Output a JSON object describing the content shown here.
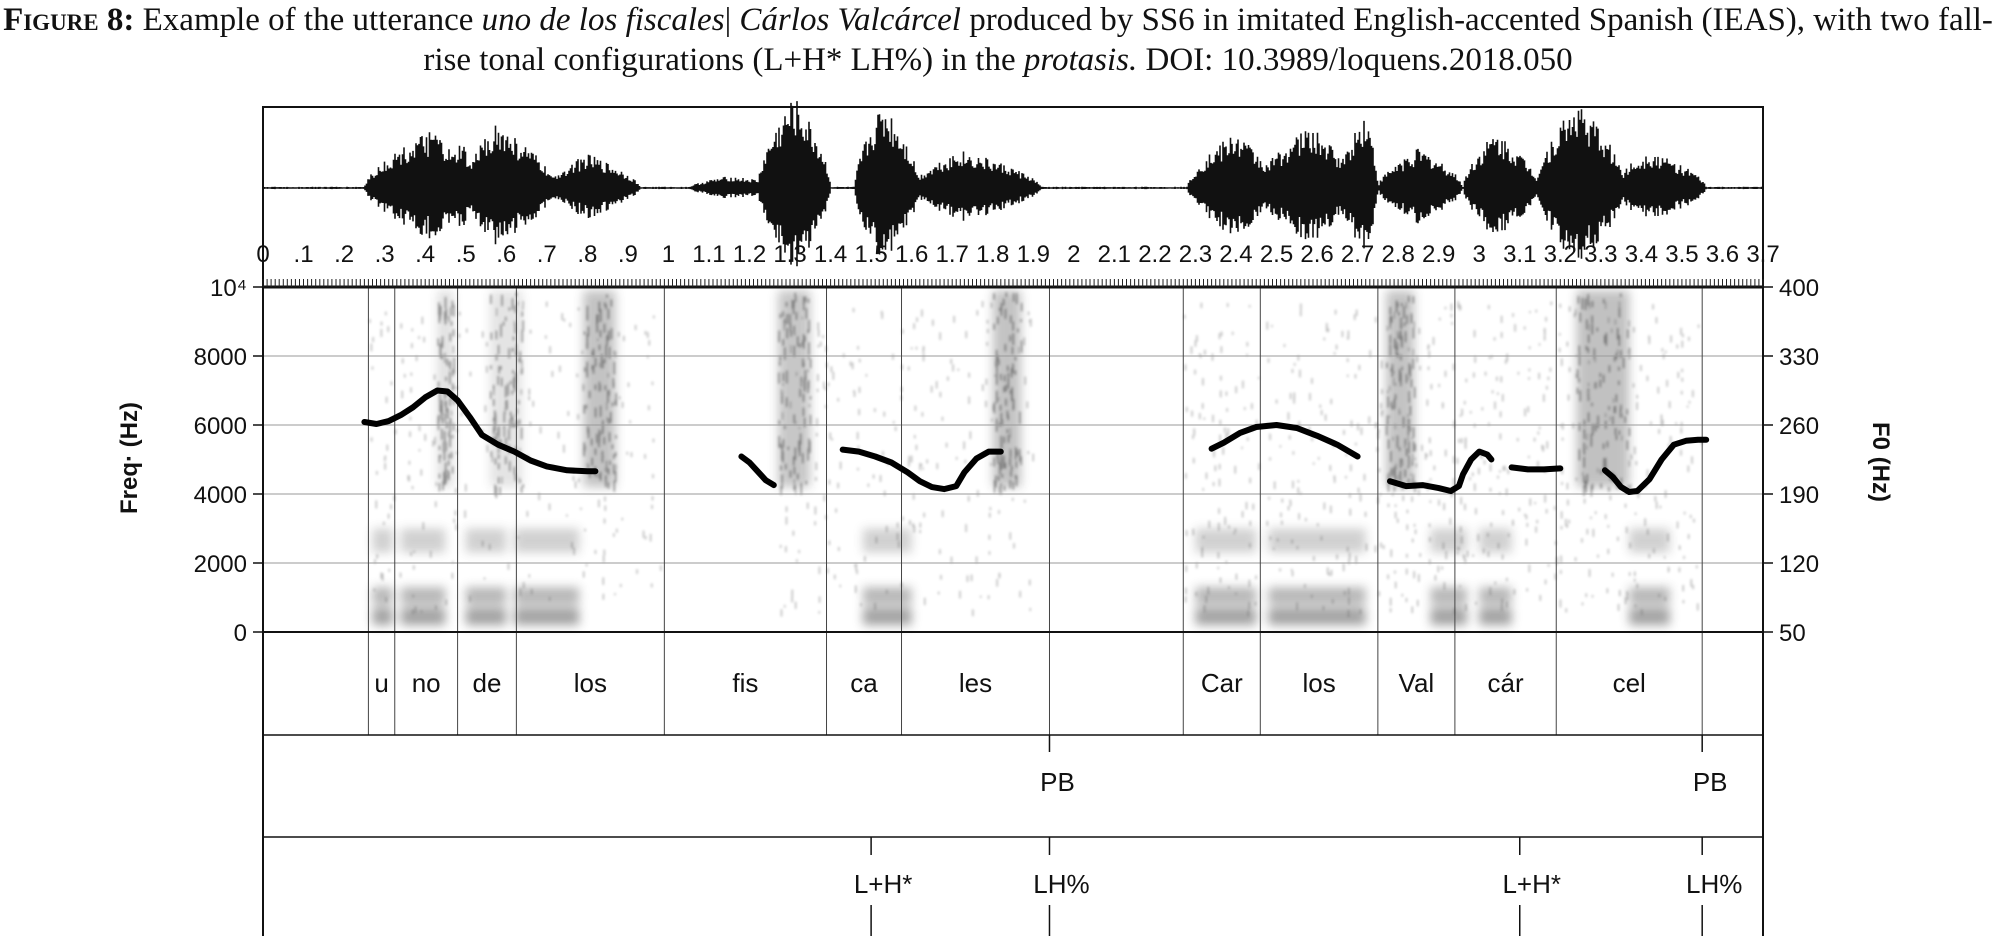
{
  "caption": {
    "label": "Figure 8:",
    "t1": " Example of the utterance ",
    "i1": "uno de los fiscales",
    "t2": "| ",
    "i2": "Cárlos Valcárcel",
    "t3": " produced by SS6 in imitated English-accented Spanish (IEAS), with two fall-rise tonal configurations (L+H* LH%) in the ",
    "i3": "protasis.",
    "t4": " DOI: 10.3989/loquens.2018.050"
  },
  "chart_data": {
    "type": "line",
    "xlim": [
      0,
      3.7
    ],
    "time_ticks": [
      "0",
      "0.1",
      "0.2",
      "0.3",
      "0.4",
      "0.5",
      "0.6",
      "0.7",
      "0.8",
      "0.9",
      "1",
      "1.1",
      "1.2",
      "1.3",
      "1.4",
      "1.5",
      "1.6",
      "1.7",
      "1.8",
      "1.9",
      "2",
      "2.1",
      "2.2",
      "2.3",
      "2.4",
      "2.5",
      "2.6",
      "2.7",
      "2.8",
      "2.9",
      "3",
      "3.1",
      "3.2",
      "3.3",
      "3.4",
      "3.5",
      "3.6",
      "3.7"
    ],
    "left_axis": {
      "label": "Freq· (Hz)",
      "ylim": [
        0,
        10000
      ],
      "ticks": [
        "0",
        "2000",
        "4000",
        "6000",
        "8000",
        "10⁴"
      ]
    },
    "right_axis": {
      "label": "F0 (Hz)",
      "ylim": [
        50,
        400
      ],
      "ticks": [
        "50",
        "120",
        "190",
        "260",
        "330",
        "400"
      ]
    },
    "f0_contour": [
      [
        [
          0.25,
          263
        ],
        [
          0.28,
          261
        ],
        [
          0.31,
          264
        ],
        [
          0.34,
          270
        ],
        [
          0.37,
          278
        ],
        [
          0.4,
          288
        ],
        [
          0.43,
          295
        ],
        [
          0.455,
          294
        ],
        [
          0.48,
          285
        ],
        [
          0.51,
          268
        ],
        [
          0.54,
          250
        ],
        [
          0.58,
          240
        ],
        [
          0.62,
          233
        ],
        [
          0.66,
          224
        ],
        [
          0.7,
          218
        ],
        [
          0.75,
          214
        ],
        [
          0.8,
          213
        ],
        [
          0.82,
          213
        ]
      ],
      [
        [
          1.18,
          228
        ],
        [
          1.2,
          222
        ],
        [
          1.22,
          213
        ],
        [
          1.24,
          204
        ],
        [
          1.26,
          199
        ]
      ],
      [
        [
          1.43,
          235
        ],
        [
          1.47,
          233
        ],
        [
          1.51,
          228
        ],
        [
          1.55,
          222
        ],
        [
          1.59,
          212
        ],
        [
          1.62,
          203
        ],
        [
          1.65,
          197
        ],
        [
          1.68,
          195
        ],
        [
          1.71,
          198
        ],
        [
          1.73,
          212
        ],
        [
          1.76,
          226
        ],
        [
          1.79,
          233
        ],
        [
          1.82,
          233
        ]
      ],
      [
        [
          2.34,
          236
        ],
        [
          2.37,
          242
        ],
        [
          2.41,
          252
        ],
        [
          2.45,
          258
        ],
        [
          2.5,
          260
        ],
        [
          2.55,
          257
        ],
        [
          2.6,
          249
        ],
        [
          2.65,
          240
        ],
        [
          2.7,
          228
        ]
      ],
      [
        [
          2.78,
          203
        ],
        [
          2.82,
          198
        ],
        [
          2.86,
          199
        ],
        [
          2.9,
          196
        ],
        [
          2.93,
          193
        ],
        [
          2.95,
          198
        ],
        [
          2.96,
          210
        ],
        [
          2.98,
          225
        ],
        [
          3.0,
          233
        ],
        [
          3.02,
          230
        ],
        [
          3.03,
          225
        ]
      ],
      [
        [
          3.08,
          217
        ],
        [
          3.12,
          215
        ],
        [
          3.16,
          215
        ],
        [
          3.2,
          216
        ]
      ],
      [
        [
          3.31,
          214
        ],
        [
          3.33,
          207
        ],
        [
          3.35,
          197
        ],
        [
          3.37,
          192
        ],
        [
          3.39,
          193
        ],
        [
          3.42,
          205
        ],
        [
          3.45,
          225
        ],
        [
          3.48,
          240
        ],
        [
          3.51,
          244
        ],
        [
          3.54,
          245
        ],
        [
          3.56,
          245
        ]
      ]
    ],
    "syllables": [
      {
        "text": "u",
        "start": 0.26,
        "end": 0.325
      },
      {
        "text": "no",
        "start": 0.325,
        "end": 0.48
      },
      {
        "text": "de",
        "start": 0.48,
        "end": 0.625
      },
      {
        "text": "los",
        "start": 0.625,
        "end": 0.99
      },
      {
        "text": "fis",
        "start": 0.99,
        "end": 1.39
      },
      {
        "text": "ca",
        "start": 1.39,
        "end": 1.575
      },
      {
        "text": "les",
        "start": 1.575,
        "end": 1.94
      },
      {
        "text": "",
        "start": 1.94,
        "end": 2.27
      },
      {
        "text": "Car",
        "start": 2.27,
        "end": 2.46
      },
      {
        "text": "los",
        "start": 2.46,
        "end": 2.75
      },
      {
        "text": "Val",
        "start": 2.75,
        "end": 2.94
      },
      {
        "text": "cár",
        "start": 2.94,
        "end": 3.19
      },
      {
        "text": "cel",
        "start": 3.19,
        "end": 3.55
      }
    ],
    "break_tier": [
      {
        "text": "PB",
        "time": 1.94
      },
      {
        "text": "PB",
        "time": 3.55
      }
    ],
    "tone_tier": [
      {
        "text": "L+H*",
        "time": 1.5
      },
      {
        "text": "LH%",
        "time": 1.94
      },
      {
        "text": "L+H*",
        "time": 3.1
      },
      {
        "text": "LH%",
        "time": 3.55
      }
    ],
    "grid": true
  }
}
